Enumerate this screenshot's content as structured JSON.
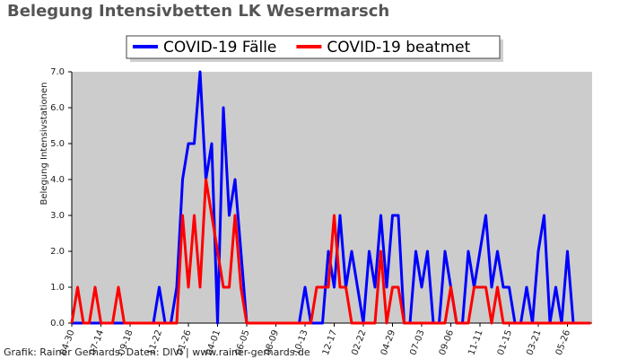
{
  "chart_data": {
    "type": "line",
    "title": "Belegung Intensivbetten LK Wesermarsch",
    "y_label": "Belegung Intensivstationen",
    "footer": "Grafik: Rainer Gerhards, Daten: DIVI | www.rainer-gerhards.de",
    "categories": [
      "04-30",
      null,
      null,
      null,
      null,
      "07-14",
      null,
      null,
      null,
      null,
      "09-18",
      null,
      null,
      null,
      null,
      "11-22",
      null,
      null,
      null,
      null,
      "01-26",
      null,
      null,
      null,
      null,
      "04-01",
      null,
      null,
      null,
      null,
      "06-05",
      null,
      null,
      null,
      null,
      "08-09",
      null,
      null,
      null,
      null,
      "10-13",
      null,
      null,
      null,
      null,
      "12-17",
      null,
      null,
      null,
      null,
      "02-22",
      null,
      null,
      null,
      null,
      "04-29",
      null,
      null,
      null,
      null,
      "07-03",
      null,
      null,
      null,
      null,
      "09-06",
      null,
      null,
      null,
      null,
      "11-11",
      null,
      null,
      null,
      null,
      "01-15",
      null,
      null,
      null,
      null,
      "03-21",
      null,
      null,
      null,
      null,
      "05-26",
      null,
      null,
      null,
      null
    ],
    "series": [
      {
        "name": "COVID-19 Fälle",
        "color": "#0000ff",
        "values": [
          0,
          0,
          0,
          0,
          0,
          0,
          0,
          0,
          0,
          0,
          0,
          0,
          0,
          0,
          0,
          1,
          0,
          0,
          1,
          4,
          5,
          5,
          7,
          4,
          5,
          0,
          6,
          3,
          4,
          2,
          0,
          0,
          0,
          0,
          0,
          0,
          0,
          0,
          0,
          0,
          1,
          0,
          0,
          0,
          2,
          1,
          3,
          1,
          2,
          1,
          0,
          2,
          1,
          3,
          1,
          3,
          3,
          0,
          0,
          2,
          1,
          2,
          0,
          0,
          2,
          1,
          0,
          0,
          2,
          1,
          2,
          3,
          1,
          2,
          1,
          1,
          0,
          0,
          1,
          0,
          2,
          3,
          0,
          1,
          0,
          2,
          0,
          0,
          0,
          0
        ]
      },
      {
        "name": "COVID-19 beatmet",
        "color": "#ff0000",
        "values": [
          0,
          1,
          0,
          0,
          1,
          0,
          0,
          0,
          1,
          0,
          0,
          0,
          0,
          0,
          0,
          0,
          0,
          0,
          0,
          3,
          1,
          3,
          1,
          4,
          3,
          2,
          1,
          1,
          3,
          1,
          0,
          0,
          0,
          0,
          0,
          0,
          0,
          0,
          0,
          0,
          0,
          0,
          1,
          1,
          1,
          3,
          1,
          1,
          0,
          0,
          0,
          0,
          0,
          2,
          0,
          1,
          1,
          0,
          0,
          0,
          0,
          0,
          0,
          0,
          0,
          1,
          0,
          0,
          0,
          1,
          1,
          1,
          0,
          1,
          0,
          0,
          0,
          0,
          0,
          0,
          0,
          0,
          0,
          0,
          0,
          0,
          0,
          0,
          0,
          0
        ]
      }
    ],
    "ylim": [
      0,
      7
    ],
    "yticks": [
      {
        "value": 0,
        "label": "0.0"
      },
      {
        "value": 1,
        "label": "1.0"
      },
      {
        "value": 2,
        "label": "2.0"
      },
      {
        "value": 3,
        "label": "3.0"
      },
      {
        "value": 4,
        "label": "4.0"
      },
      {
        "value": 5,
        "label": "5.0"
      },
      {
        "value": 6,
        "label": "6.0"
      },
      {
        "value": 7,
        "label": "7.0"
      }
    ],
    "grid": false
  }
}
